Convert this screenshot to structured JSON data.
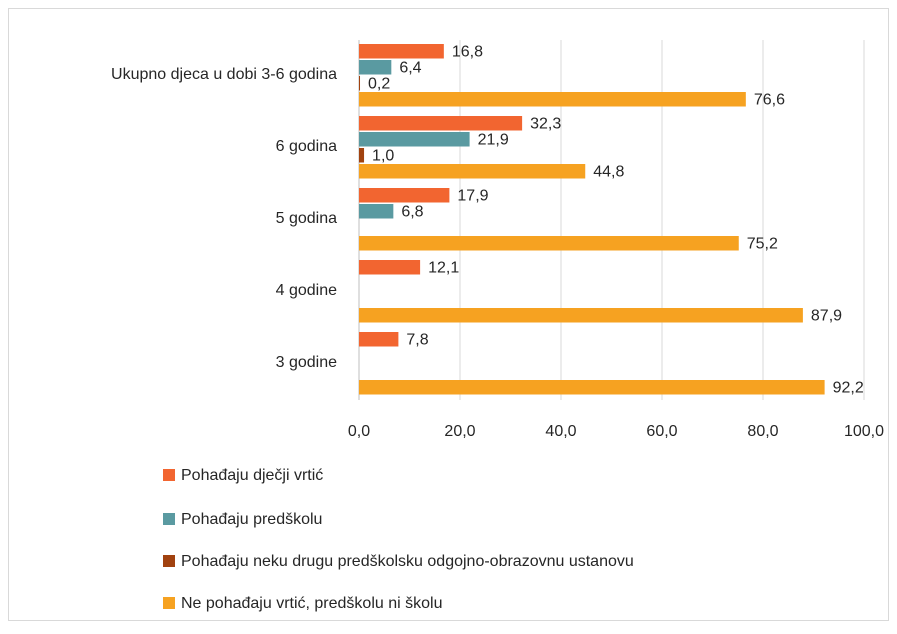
{
  "chart_data": {
    "type": "bar",
    "orientation": "horizontal",
    "categories": [
      "Ukupno djeca u dobi 3-6 godina",
      "6 godina",
      "5 godina",
      "4 godine",
      "3 godine"
    ],
    "series": [
      {
        "name": "Pohađaju dječji vrtić",
        "color": "#f26530",
        "values": [
          16.8,
          32.3,
          17.9,
          12.1,
          7.8
        ],
        "value_labels": [
          "16,8",
          "32,3",
          "17,9",
          "12,1",
          "7,8"
        ]
      },
      {
        "name": "Pohađaju predškolu",
        "color": "#5a9aa1",
        "values": [
          6.4,
          21.9,
          6.8,
          null,
          null
        ],
        "value_labels": [
          "6,4",
          "21,9",
          "6,8",
          null,
          null
        ]
      },
      {
        "name": "Pohađaju neku drugu predškolsku odgojno-obrazovnu ustanovu",
        "color": "#a1420f",
        "values": [
          0.2,
          1.0,
          null,
          null,
          null
        ],
        "value_labels": [
          "0,2",
          "1,0",
          null,
          null,
          null
        ]
      },
      {
        "name": "Ne pohađaju vrtić, predškolu ni školu",
        "color": "#f6a221",
        "values": [
          76.6,
          44.8,
          75.2,
          87.9,
          92.2
        ],
        "value_labels": [
          "76,6",
          "44,8",
          "75,2",
          "87,9",
          "92,2"
        ]
      }
    ],
    "xlim": [
      0,
      100
    ],
    "xticks": [
      {
        "value": 0,
        "label": "0,0"
      },
      {
        "value": 20,
        "label": "20,0"
      },
      {
        "value": 40,
        "label": "40,0"
      },
      {
        "value": 60,
        "label": "60,0"
      },
      {
        "value": 80,
        "label": "80,0"
      },
      {
        "value": 100,
        "label": "100,0"
      }
    ],
    "grid": true,
    "legend": "bottom"
  }
}
